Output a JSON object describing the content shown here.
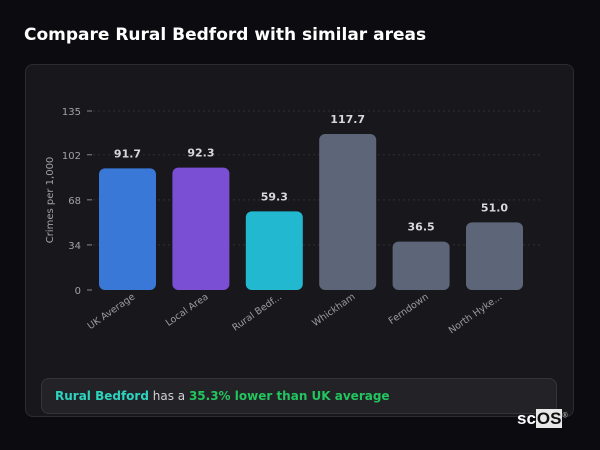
{
  "title": "Compare Rural Bedford with similar areas",
  "chart_data": {
    "type": "bar",
    "categories": [
      "UK Average",
      "Local Area",
      "Rural Bedf...",
      "Whickham",
      "Ferndown",
      "North Hyke..."
    ],
    "values": [
      91.7,
      92.3,
      59.3,
      117.7,
      36.5,
      51.0
    ],
    "value_labels": [
      "91.7",
      "92.3",
      "59.3",
      "117.7",
      "36.5",
      "51.0"
    ],
    "colors": [
      "#3a78d8",
      "#7b4fd4",
      "#22b8d0",
      "#5d6678",
      "#5d6678",
      "#5d6678"
    ],
    "ylabel": "Crimes per 1,000",
    "xlabel": "",
    "yticks": [
      "0",
      "34",
      "68",
      "102",
      "135"
    ],
    "ylim": [
      0,
      135
    ],
    "grid": true
  },
  "summary": {
    "area": "Rural Bedford",
    "middle": " has a ",
    "comparison": "35.3% lower than UK average"
  },
  "logo": {
    "text_a": "sc",
    "text_b": "OS",
    "mark": "®"
  }
}
